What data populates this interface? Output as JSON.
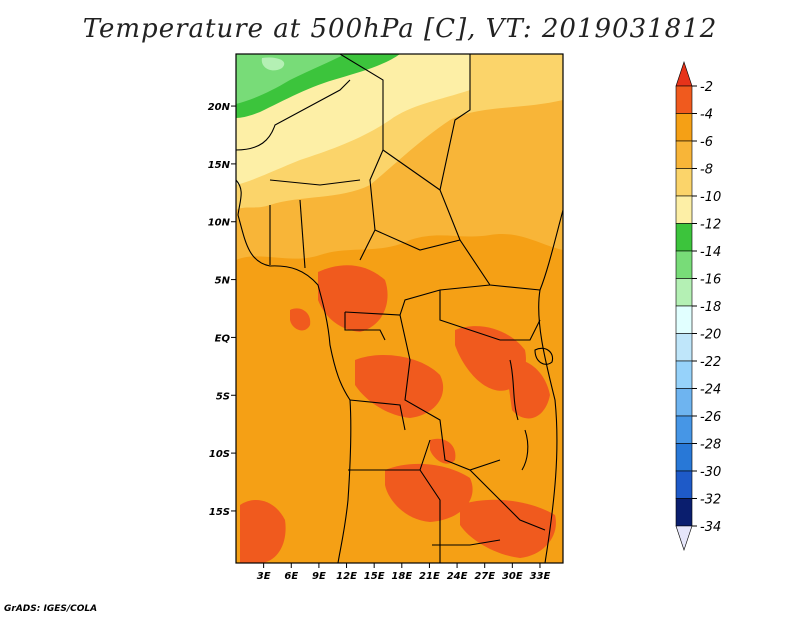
{
  "title": "Temperature at 500hPa [C], VT: 2019031812",
  "credit": "GrADS: IGES/COLA",
  "map": {
    "lon_range": [
      0,
      35.5
    ],
    "lat_range": [
      -19.5,
      24.5
    ],
    "x_ticks": [
      {
        "value": 3,
        "label": "3E"
      },
      {
        "value": 6,
        "label": "6E"
      },
      {
        "value": 9,
        "label": "9E"
      },
      {
        "value": 12,
        "label": "12E"
      },
      {
        "value": 15,
        "label": "15E"
      },
      {
        "value": 18,
        "label": "18E"
      },
      {
        "value": 21,
        "label": "21E"
      },
      {
        "value": 24,
        "label": "24E"
      },
      {
        "value": 27,
        "label": "27E"
      },
      {
        "value": 30,
        "label": "30E"
      },
      {
        "value": 33,
        "label": "33E"
      }
    ],
    "y_ticks": [
      {
        "value": 20,
        "label": "20N"
      },
      {
        "value": 15,
        "label": "15N"
      },
      {
        "value": 10,
        "label": "10N"
      },
      {
        "value": 5,
        "label": "5N"
      },
      {
        "value": 0,
        "label": "EQ"
      },
      {
        "value": -5,
        "label": "5S"
      },
      {
        "value": -10,
        "label": "10S"
      },
      {
        "value": -15,
        "label": "15S"
      }
    ]
  },
  "colorbar": {
    "levels": [
      {
        "label": "-2",
        "color": "#f05a1e"
      },
      {
        "label": "-4",
        "color": "#f5a015"
      },
      {
        "label": "-6",
        "color": "#f8b538"
      },
      {
        "label": "-8",
        "color": "#fbd46a"
      },
      {
        "label": "-10",
        "color": "#fdefa6"
      },
      {
        "label": "-12",
        "color": "#3cc43c"
      },
      {
        "label": "-14",
        "color": "#78dc78"
      },
      {
        "label": "-16",
        "color": "#b4f0b4"
      },
      {
        "label": "-18",
        "color": "#e1ffff"
      },
      {
        "label": "-20",
        "color": "#bfe6fa"
      },
      {
        "label": "-22",
        "color": "#96d2fa"
      },
      {
        "label": "-24",
        "color": "#6eb4f0"
      },
      {
        "label": "-26",
        "color": "#4696e6"
      },
      {
        "label": "-28",
        "color": "#2878d7"
      },
      {
        "label": "-30",
        "color": "#1e5ac8"
      },
      {
        "label": "-32",
        "color": "#1436a0"
      },
      {
        "label": "-34",
        "color": ""
      }
    ],
    "top_color": "#e6331a",
    "bottom_color": "#e6e6fa",
    "darkest_color": "#0a1e6e"
  }
}
